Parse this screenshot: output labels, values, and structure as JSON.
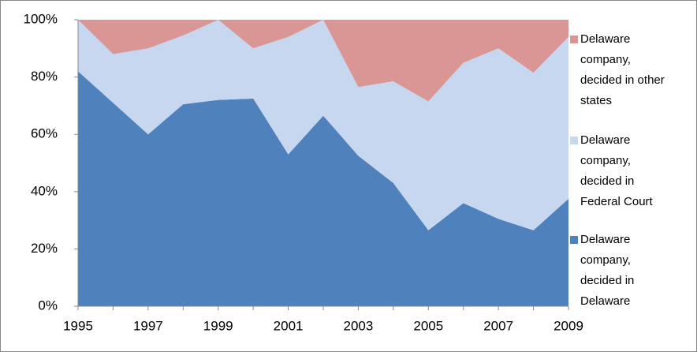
{
  "chart_data": {
    "type": "stacked-area",
    "x": [
      1995,
      1996,
      1997,
      1998,
      1999,
      2000,
      2001,
      2002,
      2003,
      2004,
      2005,
      2006,
      2007,
      2008,
      2009
    ],
    "series": [
      {
        "name": "Delaware company, decided in Delaware",
        "color": "#4f81bd",
        "values": [
          82,
          71,
          60,
          70.5,
          72,
          72.5,
          53,
          66.5,
          52.5,
          43,
          26.5,
          36,
          30.5,
          26.5,
          37.5
        ]
      },
      {
        "name": "Delaware company, decided in Federal Court",
        "color": "#c6d7ef",
        "values": [
          18,
          17,
          30,
          24,
          28,
          17.5,
          41,
          33.5,
          24,
          35.5,
          45,
          49,
          59.5,
          55,
          56.5
        ]
      },
      {
        "name": "Delaware company, decided in other states",
        "color": "#d99694",
        "values": [
          0,
          12,
          10,
          5.5,
          0,
          10,
          6,
          0,
          23.5,
          21.5,
          28.5,
          15,
          10,
          18.5,
          6
        ]
      }
    ],
    "xlim": [
      1995,
      2009
    ],
    "xticks": [
      1995,
      1997,
      1999,
      2001,
      2003,
      2005,
      2007,
      2009
    ],
    "ylim": [
      0,
      100
    ],
    "yticks": [
      {
        "value": 0,
        "label": "0%"
      },
      {
        "value": 20,
        "label": "20%"
      },
      {
        "value": 40,
        "label": "40%"
      },
      {
        "value": 60,
        "label": "60%"
      },
      {
        "value": 80,
        "label": "80%"
      },
      {
        "value": 100,
        "label": "100%"
      }
    ],
    "legend": "right"
  }
}
